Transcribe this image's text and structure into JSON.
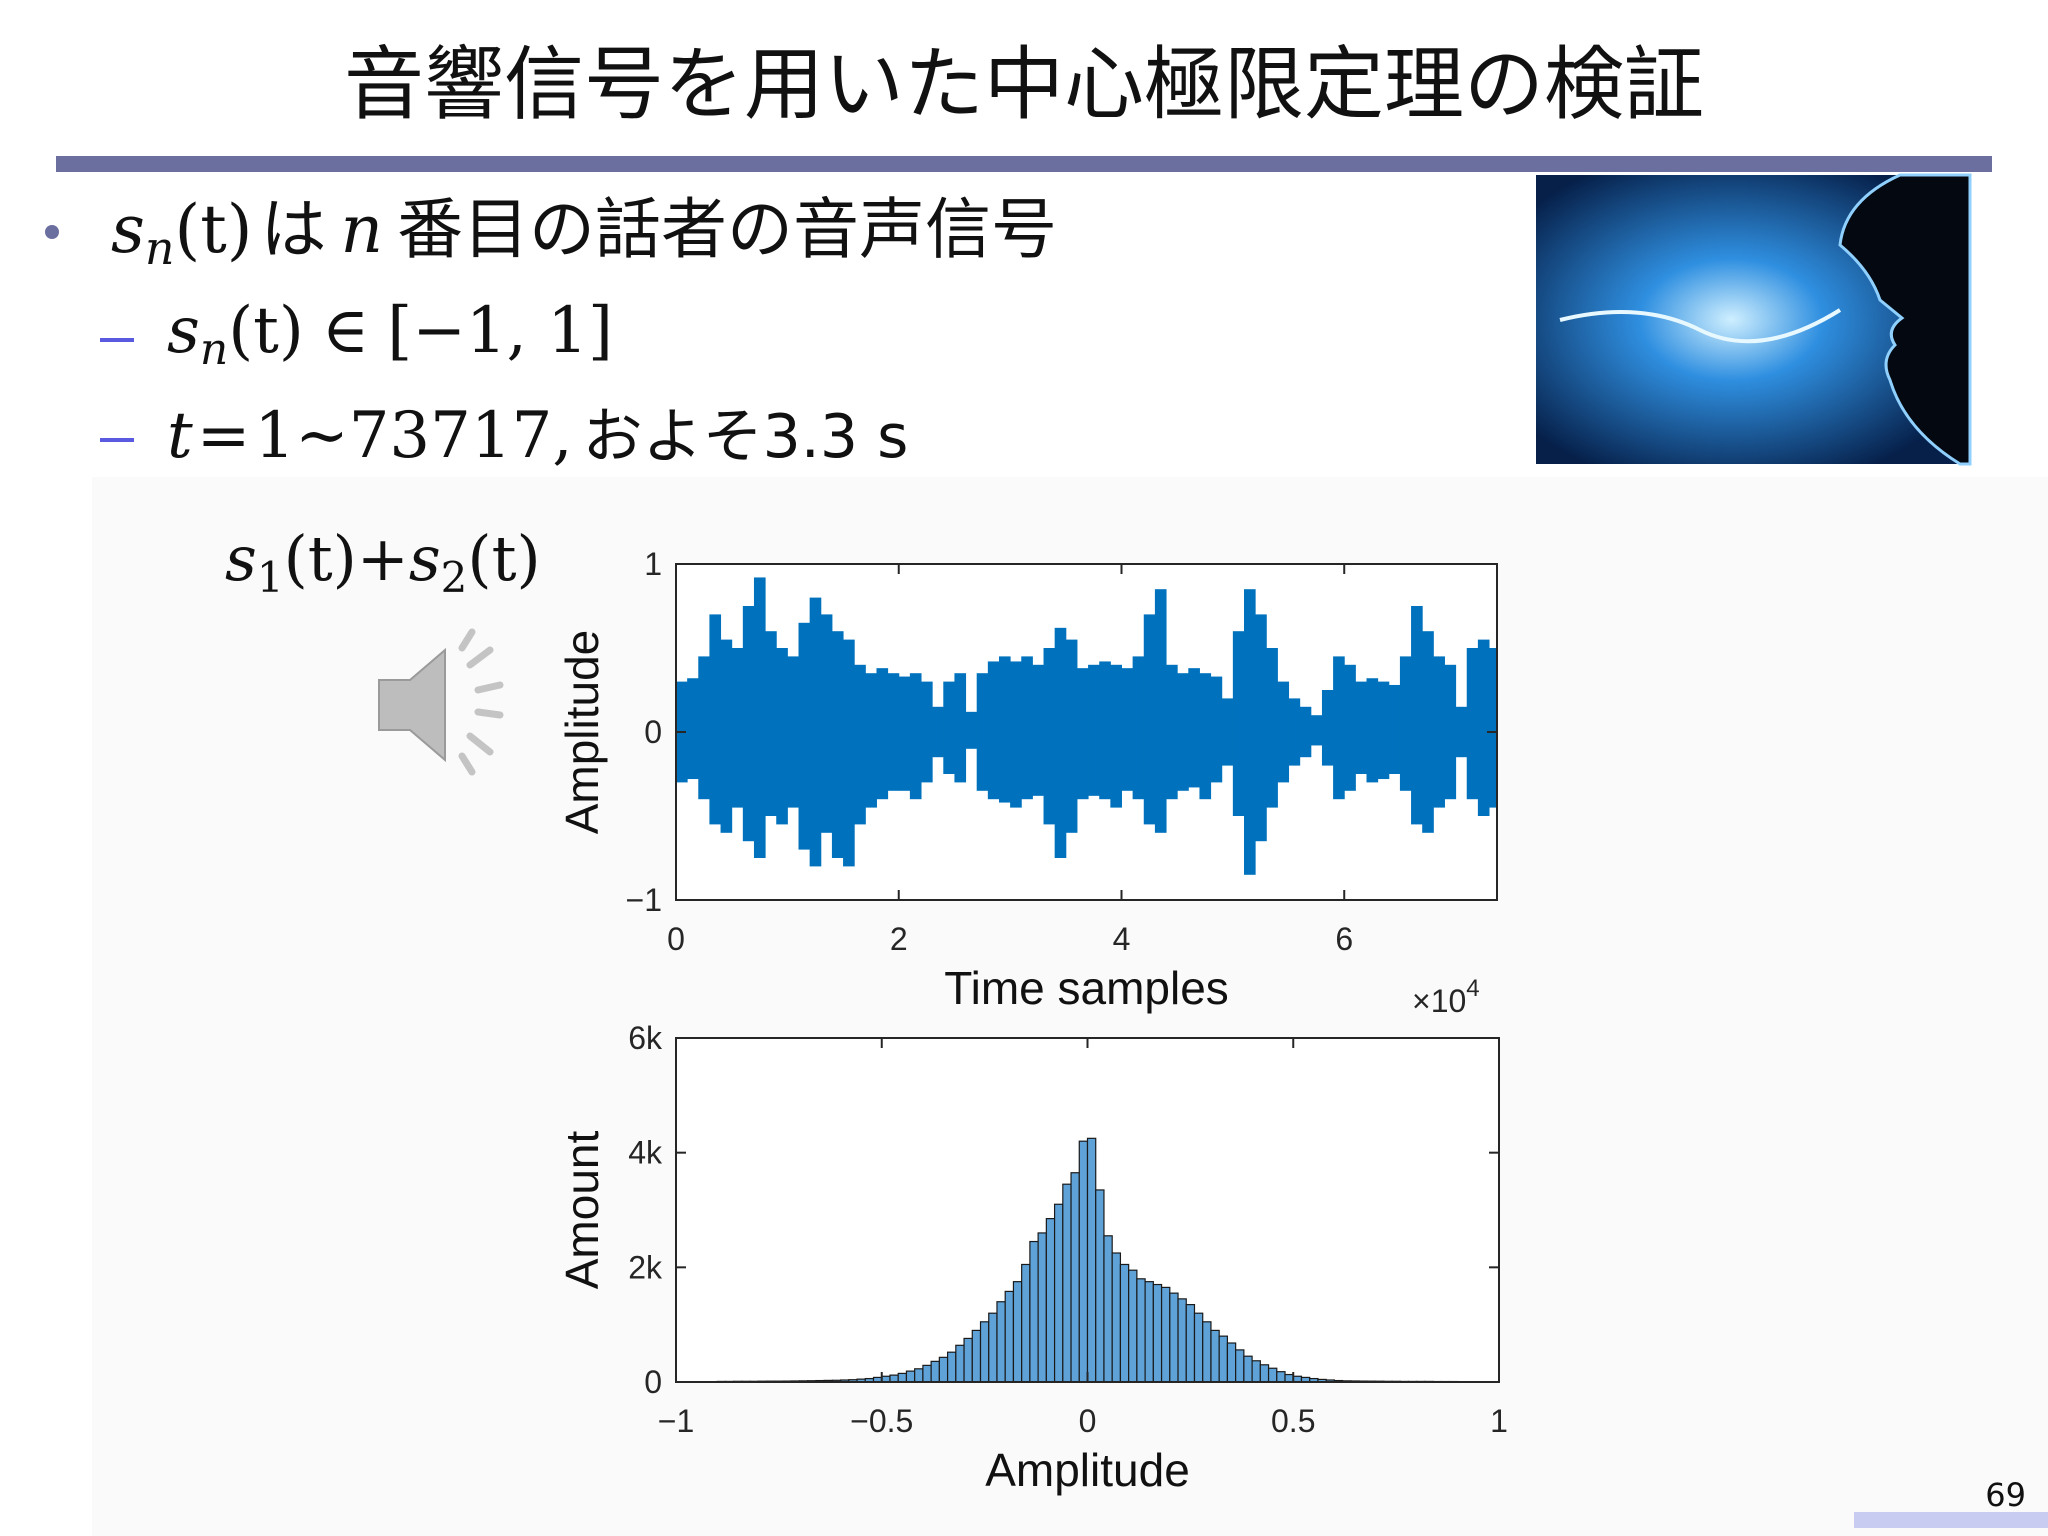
{
  "title": "音響信号を用いた中心極限定理の検証",
  "bullet_1": {
    "var": "s",
    "sub": "n",
    "arg": "(t)",
    "text": "は",
    "var2": "n",
    "text2": "番目の話者の音声信号"
  },
  "sub_bullet_1": {
    "var": "s",
    "sub": "n",
    "arg": "(t)",
    "rel": "∈",
    "set": "[−1, 1]"
  },
  "sub_bullet_2": {
    "var": "t",
    "rel": "=",
    "range": "1∼73717,",
    "text": "およそ3.3 s"
  },
  "sum_label": {
    "var1": "s",
    "sub1": "1",
    "arg1": "(t)",
    "op": "+",
    "var2": "s",
    "sub2": "2",
    "arg2": "(t)"
  },
  "page_number": "69",
  "chart_data": [
    {
      "type": "waveform",
      "xlabel": "Time samples",
      "ylabel": "Amplitude",
      "x_multiplier": "×10",
      "x_multiplier_exp": "4",
      "xlim": [
        0,
        73717
      ],
      "ylim": [
        -1,
        1
      ],
      "xticks": [
        {
          "value": 0,
          "label": "0"
        },
        {
          "value": 20000,
          "label": "2"
        },
        {
          "value": 40000,
          "label": "4"
        },
        {
          "value": 60000,
          "label": "6"
        }
      ],
      "yticks": [
        {
          "value": -1,
          "label": "−1"
        },
        0,
        1
      ],
      "x": [
        0,
        1000,
        2000,
        3000,
        4000,
        5000,
        6000,
        7000,
        8000,
        9000,
        10000,
        11000,
        12000,
        13000,
        14000,
        15000,
        16000,
        17000,
        18000,
        19000,
        20000,
        21000,
        22000,
        23000,
        24000,
        25000,
        26000,
        27000,
        28000,
        29000,
        30000,
        31000,
        32000,
        33000,
        34000,
        35000,
        36000,
        37000,
        38000,
        39000,
        40000,
        41000,
        42000,
        43000,
        44000,
        45000,
        46000,
        47000,
        48000,
        49000,
        50000,
        51000,
        52000,
        53000,
        54000,
        55000,
        56000,
        57000,
        58000,
        59000,
        60000,
        61000,
        62000,
        63000,
        64000,
        65000,
        66000,
        67000,
        68000,
        69000,
        70000,
        71000,
        72000,
        73000
      ],
      "series": [
        {
          "color": "#0072bd",
          "values": [
            0.3,
            0.32,
            0.45,
            0.7,
            0.55,
            0.5,
            0.75,
            0.92,
            0.6,
            0.5,
            0.45,
            0.65,
            0.8,
            0.7,
            0.6,
            0.55,
            0.4,
            0.35,
            0.38,
            0.35,
            0.33,
            0.35,
            0.3,
            0.15,
            0.3,
            0.35,
            0.12,
            0.35,
            0.42,
            0.45,
            0.42,
            0.45,
            0.4,
            0.5,
            0.62,
            0.55,
            0.38,
            0.4,
            0.42,
            0.4,
            0.38,
            0.45,
            0.7,
            0.85,
            0.4,
            0.35,
            0.38,
            0.35,
            0.33,
            0.2,
            0.6,
            0.85,
            0.7,
            0.5,
            0.3,
            0.2,
            0.15,
            0.1,
            0.25,
            0.45,
            0.4,
            0.3,
            0.32,
            0.3,
            0.28,
            0.45,
            0.75,
            0.6,
            0.45,
            0.4,
            0.15,
            0.5,
            0.55,
            0.5
          ]
        },
        {
          "color": "#0072bd",
          "values": [
            -0.3,
            -0.28,
            -0.4,
            -0.55,
            -0.6,
            -0.45,
            -0.65,
            -0.75,
            -0.5,
            -0.55,
            -0.45,
            -0.7,
            -0.8,
            -0.6,
            -0.75,
            -0.8,
            -0.55,
            -0.45,
            -0.4,
            -0.35,
            -0.35,
            -0.4,
            -0.3,
            -0.15,
            -0.25,
            -0.3,
            -0.1,
            -0.35,
            -0.4,
            -0.42,
            -0.45,
            -0.4,
            -0.38,
            -0.55,
            -0.75,
            -0.6,
            -0.4,
            -0.38,
            -0.4,
            -0.45,
            -0.35,
            -0.4,
            -0.55,
            -0.6,
            -0.4,
            -0.35,
            -0.33,
            -0.4,
            -0.3,
            -0.2,
            -0.5,
            -0.85,
            -0.65,
            -0.45,
            -0.3,
            -0.2,
            -0.15,
            -0.08,
            -0.2,
            -0.4,
            -0.35,
            -0.25,
            -0.3,
            -0.28,
            -0.25,
            -0.35,
            -0.55,
            -0.6,
            -0.45,
            -0.4,
            -0.15,
            -0.4,
            -0.5,
            -0.45
          ]
        }
      ]
    },
    {
      "type": "histogram",
      "xlabel": "Amplitude",
      "ylabel": "Amount",
      "color": "#5fa2d8",
      "edgecolor": "#1a1a1a",
      "xlim": [
        -1,
        1
      ],
      "ylim": [
        0,
        6000
      ],
      "xticks": [
        {
          "value": -1,
          "label": "−1"
        },
        {
          "value": -0.5,
          "label": "−0.5"
        },
        0,
        0.5,
        1
      ],
      "yticks": [
        0,
        {
          "value": 2000,
          "label": "2k"
        },
        {
          "value": 4000,
          "label": "4k"
        },
        {
          "value": 6000,
          "label": "6k"
        }
      ],
      "bins": [
        -1,
        -0.98,
        -0.96,
        -0.94,
        -0.92,
        -0.9,
        -0.88,
        -0.86,
        -0.84,
        -0.82,
        -0.8,
        -0.78,
        -0.76,
        -0.74,
        -0.72,
        -0.7,
        -0.68,
        -0.66,
        -0.64,
        -0.62,
        -0.6,
        -0.58,
        -0.56,
        -0.54,
        -0.52,
        -0.5,
        -0.48,
        -0.46,
        -0.44,
        -0.42,
        -0.4,
        -0.38,
        -0.36,
        -0.34,
        -0.32,
        -0.3,
        -0.28,
        -0.26,
        -0.24,
        -0.22,
        -0.2,
        -0.18,
        -0.16,
        -0.14,
        -0.12,
        -0.1,
        -0.08,
        -0.06,
        -0.04,
        -0.02,
        0,
        0.02,
        0.04,
        0.06,
        0.08,
        0.1,
        0.12,
        0.14,
        0.16,
        0.18,
        0.2,
        0.22,
        0.24,
        0.26,
        0.28,
        0.3,
        0.32,
        0.34,
        0.36,
        0.38,
        0.4,
        0.42,
        0.44,
        0.46,
        0.48,
        0.5,
        0.52,
        0.54,
        0.56,
        0.58,
        0.6,
        0.62,
        0.64,
        0.66,
        0.68,
        0.7,
        0.72,
        0.74,
        0.76,
        0.78,
        0.8,
        0.82,
        0.84,
        0.86,
        0.88,
        0.9,
        0.92,
        0.94,
        0.96,
        0.98,
        1
      ],
      "values": [
        0,
        0,
        0,
        0,
        0,
        10,
        10,
        12,
        12,
        12,
        14,
        15,
        15,
        16,
        18,
        20,
        22,
        25,
        28,
        30,
        35,
        40,
        50,
        60,
        80,
        100,
        120,
        150,
        190,
        230,
        290,
        360,
        430,
        520,
        640,
        760,
        900,
        1050,
        1200,
        1400,
        1580,
        1750,
        2050,
        2450,
        2600,
        2850,
        3100,
        3450,
        3650,
        4200,
        4250,
        3350,
        2550,
        2250,
        2050,
        1950,
        1800,
        1750,
        1700,
        1650,
        1550,
        1450,
        1350,
        1200,
        1050,
        900,
        800,
        680,
        560,
        450,
        370,
        300,
        240,
        180,
        130,
        100,
        80,
        60,
        45,
        35,
        25,
        20,
        18,
        16,
        15,
        14,
        12,
        12,
        10,
        10,
        10,
        10,
        8,
        8,
        8,
        6,
        5,
        5,
        0,
        0
      ]
    }
  ]
}
